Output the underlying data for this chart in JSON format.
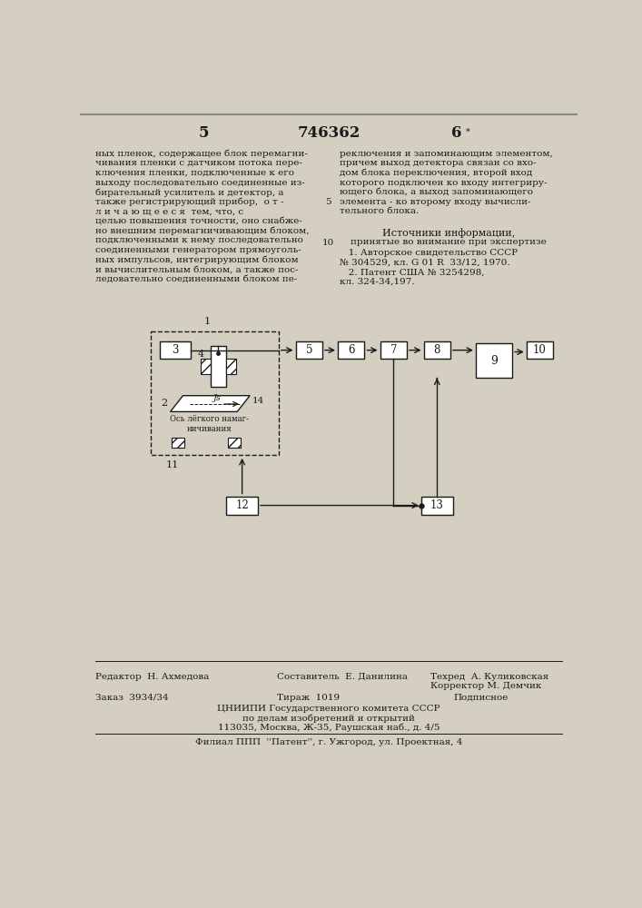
{
  "page_number_left": "5",
  "patent_number": "746362",
  "page_number_right": "6",
  "bg_color": "#d4cfc0",
  "text_color": "#1a1a1a",
  "left_column_text": [
    "ных пленок, содержащее блок перемагни-",
    "чивания пленки с датчиком потока пере-",
    "ключения пленки, подключенные к его",
    "выходу последовательно соединенные из-",
    "бирательный усилитель и детектор, а",
    "также регистрирующий прибор,  о т -",
    "л и ч а ю щ е е с я  тем, что, с",
    "целью повышения точности, оно снабже-",
    "но внешним перемагничивающим блоком,",
    "подключенными к нему последовательно",
    "соединенными генератором прямоуголь-",
    "ных импульсов, интегрирующим блоком",
    "и вычислительным блоком, а также пос-",
    "ледовательно соединенными блоком пе-"
  ],
  "right_column_text": [
    "реключения и запоминающим элементом,",
    "причем выход детектора связан со вхо-",
    "дом блока переключения, второй вход",
    "которого подключен ко входу интегриру-",
    "ющего блока, а выход запоминающего",
    "элемента - ко второму входу вычисли-",
    "тельного блока."
  ],
  "line_number_5": "5",
  "line_number_10": "10",
  "sources_title": "Источники информации,",
  "sources_subtitle": "принятые во внимание при экспертизе",
  "source1": "   1. Авторское свидетельство СССР",
  "source1b": "№ 304529, кл. G 01 R  33/12, 1970.",
  "source2": "   2. Патент США № 3254298,",
  "source2b": "кл. 324-34,197.",
  "editor_label": "Редактор",
  "editor_name": "Н. Ахмедова",
  "composer_label": "Составитель",
  "composer_name": "Е. Данилина",
  "tech_label": "Техред",
  "tech_name": "А. Куликовская",
  "corrector_label": "Корректор",
  "corrector_name": "М. Демчик",
  "order_label": "Заказ",
  "order_number": "3934/34",
  "circulation_label": "Тираж",
  "circulation_number": "1019",
  "signed_label": "Подписное",
  "org_line1": "ЦНИИПИ Государственного комитета СССР",
  "org_line2": "по делам изобретений и открытий",
  "org_line3": "113035, Москва, Ж-35, Раушская наб., д. 4/5",
  "branch_line": "Филиал ППП  ''Патент'', г. Ужгород, ул. Проектная, 4",
  "diagram": {
    "block1_label": "1",
    "block2_label": "2",
    "block3_label": "3",
    "block4_label": "4",
    "block5_label": "5",
    "block6_label": "6",
    "block7_label": "7",
    "block8_label": "8",
    "block9_label": "9",
    "block10_label": "10",
    "block11_label": "11",
    "block12_label": "12",
    "block13_label": "13",
    "block14_label": "14",
    "js_label": "Js",
    "axis_label": "Ось лёгкого намаг-\nничивания"
  }
}
